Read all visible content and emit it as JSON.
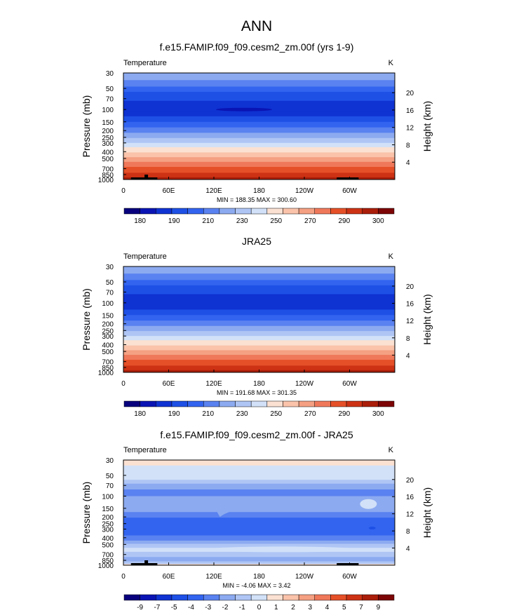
{
  "page": {
    "title": "ANN"
  },
  "colors": {
    "temp_palette": [
      "#08007d",
      "#0a14b4",
      "#0f32d2",
      "#1e50e6",
      "#3264f0",
      "#5a82f0",
      "#8caaf0",
      "#afc6f5",
      "#d2e1f8",
      "#fbe1d2",
      "#fac3aa",
      "#f5a082",
      "#f0785a",
      "#e65028",
      "#cd3214",
      "#aa1e0a",
      "#7d0505"
    ],
    "diff_palette": [
      "#08007d",
      "#0a14b4",
      "#0f32d2",
      "#1e50e6",
      "#3264f0",
      "#5a82f0",
      "#8caaf0",
      "#afc6f5",
      "#d2e1f8",
      "#fbe1d2",
      "#fac3aa",
      "#f5a082",
      "#f0785a",
      "#e65028",
      "#cd3214",
      "#aa1e0a",
      "#7d0505"
    ],
    "topography": "#000000"
  },
  "chart_data": [
    {
      "type": "heatmap",
      "title": "f.e15.FAMIP.f09_f09.cesm2_zm.00f (yrs 1-9)",
      "left_label": "Temperature",
      "right_label": "K",
      "ylabel": "Pressure (mb)",
      "y2label": "Height (km)",
      "x_ticks": [
        "0",
        "60E",
        "120E",
        "180",
        "120W",
        "60W"
      ],
      "x_tick_values": [
        0,
        60,
        120,
        180,
        240,
        300
      ],
      "xlim": [
        0,
        360
      ],
      "y_ticks": [
        "30",
        "50",
        "70",
        "100",
        "150",
        "200",
        "250",
        "300",
        "400",
        "500",
        "700",
        "850",
        "1000"
      ],
      "y_tick_values": [
        30,
        50,
        70,
        100,
        150,
        200,
        250,
        300,
        400,
        500,
        700,
        850,
        1000
      ],
      "ylim": [
        30,
        1000
      ],
      "height_ticks": [
        "20",
        "16",
        "12",
        "8",
        "4"
      ],
      "height_tick_values": [
        20,
        16,
        12,
        8,
        4
      ],
      "stats": "MIN = 188.35  MAX = 300.60",
      "colorbar_labels": [
        "180",
        "190",
        "210",
        "230",
        "250",
        "270",
        "290",
        "300"
      ],
      "layers": [
        {
          "p": 30,
          "color": 6
        },
        {
          "p": 38,
          "color": 5
        },
        {
          "p": 47,
          "color": 4
        },
        {
          "p": 56,
          "color": 3
        },
        {
          "p": 75,
          "color": 2
        },
        {
          "p": 108,
          "color": 2
        },
        {
          "p": 125,
          "color": 3
        },
        {
          "p": 150,
          "color": 4
        },
        {
          "p": 180,
          "color": 5
        },
        {
          "p": 215,
          "color": 6
        },
        {
          "p": 255,
          "color": 7
        },
        {
          "p": 300,
          "color": 8
        },
        {
          "p": 345,
          "color": 9
        },
        {
          "p": 410,
          "color": 10
        },
        {
          "p": 480,
          "color": 11
        },
        {
          "p": 560,
          "color": 12
        },
        {
          "p": 660,
          "color": 13
        },
        {
          "p": 800,
          "color": 14
        },
        {
          "p": 930,
          "color": 15
        }
      ]
    },
    {
      "type": "heatmap",
      "title": "JRA25",
      "left_label": "Temperature",
      "right_label": "K",
      "ylabel": "Pressure (mb)",
      "y2label": "Height (km)",
      "x_ticks": [
        "0",
        "60E",
        "120E",
        "180",
        "120W",
        "60W"
      ],
      "x_tick_values": [
        0,
        60,
        120,
        180,
        240,
        300
      ],
      "xlim": [
        0,
        360
      ],
      "y_ticks": [
        "30",
        "50",
        "70",
        "100",
        "150",
        "200",
        "250",
        "300",
        "400",
        "500",
        "700",
        "850",
        "1000"
      ],
      "y_tick_values": [
        30,
        50,
        70,
        100,
        150,
        200,
        250,
        300,
        400,
        500,
        700,
        850,
        1000
      ],
      "ylim": [
        30,
        1000
      ],
      "height_ticks": [
        "20",
        "16",
        "12",
        "8",
        "4"
      ],
      "height_tick_values": [
        20,
        16,
        12,
        8,
        4
      ],
      "stats": "MIN = 191.68  MAX = 301.35",
      "colorbar_labels": [
        "180",
        "190",
        "210",
        "230",
        "250",
        "270",
        "290",
        "300"
      ],
      "layers": [
        {
          "p": 30,
          "color": 6
        },
        {
          "p": 38,
          "color": 5
        },
        {
          "p": 47,
          "color": 4
        },
        {
          "p": 56,
          "color": 3
        },
        {
          "p": 75,
          "color": 2
        },
        {
          "p": 125,
          "color": 3
        },
        {
          "p": 150,
          "color": 4
        },
        {
          "p": 180,
          "color": 5
        },
        {
          "p": 215,
          "color": 6
        },
        {
          "p": 255,
          "color": 7
        },
        {
          "p": 300,
          "color": 8
        },
        {
          "p": 345,
          "color": 9
        },
        {
          "p": 410,
          "color": 10
        },
        {
          "p": 480,
          "color": 11
        },
        {
          "p": 560,
          "color": 12
        },
        {
          "p": 660,
          "color": 13
        },
        {
          "p": 800,
          "color": 14
        },
        {
          "p": 930,
          "color": 15
        }
      ]
    },
    {
      "type": "heatmap",
      "title": "f.e15.FAMIP.f09_f09.cesm2_zm.00f - JRA25",
      "left_label": "Temperature",
      "right_label": "K",
      "ylabel": "Pressure (mb)",
      "y2label": "Height (km)",
      "x_ticks": [
        "0",
        "60E",
        "120E",
        "180",
        "120W",
        "60W"
      ],
      "x_tick_values": [
        0,
        60,
        120,
        180,
        240,
        300
      ],
      "xlim": [
        0,
        360
      ],
      "y_ticks": [
        "30",
        "50",
        "70",
        "100",
        "150",
        "200",
        "250",
        "300",
        "400",
        "500",
        "700",
        "850",
        "1000"
      ],
      "y_tick_values": [
        30,
        50,
        70,
        100,
        150,
        200,
        250,
        300,
        400,
        500,
        700,
        850,
        1000
      ],
      "ylim": [
        30,
        1000
      ],
      "height_ticks": [
        "20",
        "16",
        "12",
        "8",
        "4"
      ],
      "height_tick_values": [
        20,
        16,
        12,
        8,
        4
      ],
      "stats": "MIN = -4.06  MAX =  3.42",
      "colorbar_labels": [
        "-9",
        "-7",
        "-5",
        "-4",
        "-3",
        "-2",
        "-1",
        "0",
        "1",
        "2",
        "3",
        "4",
        "5",
        "7",
        "9"
      ],
      "layers": [
        {
          "p": 30,
          "color": 9
        },
        {
          "p": 36,
          "color": 8
        },
        {
          "p": 58,
          "color": 7
        },
        {
          "p": 66,
          "color": 6
        },
        {
          "p": 80,
          "color": 5
        },
        {
          "p": 100,
          "color": 6
        },
        {
          "p": 170,
          "color": 5
        },
        {
          "p": 205,
          "color": 4
        },
        {
          "p": 370,
          "color": 5
        },
        {
          "p": 440,
          "color": 6
        },
        {
          "p": 490,
          "color": 7
        },
        {
          "p": 560,
          "color": 8
        },
        {
          "p": 640,
          "color": 7
        },
        {
          "p": 760,
          "color": 6
        },
        {
          "p": 880,
          "color": 7
        },
        {
          "p": 960,
          "color": 9
        }
      ]
    }
  ]
}
